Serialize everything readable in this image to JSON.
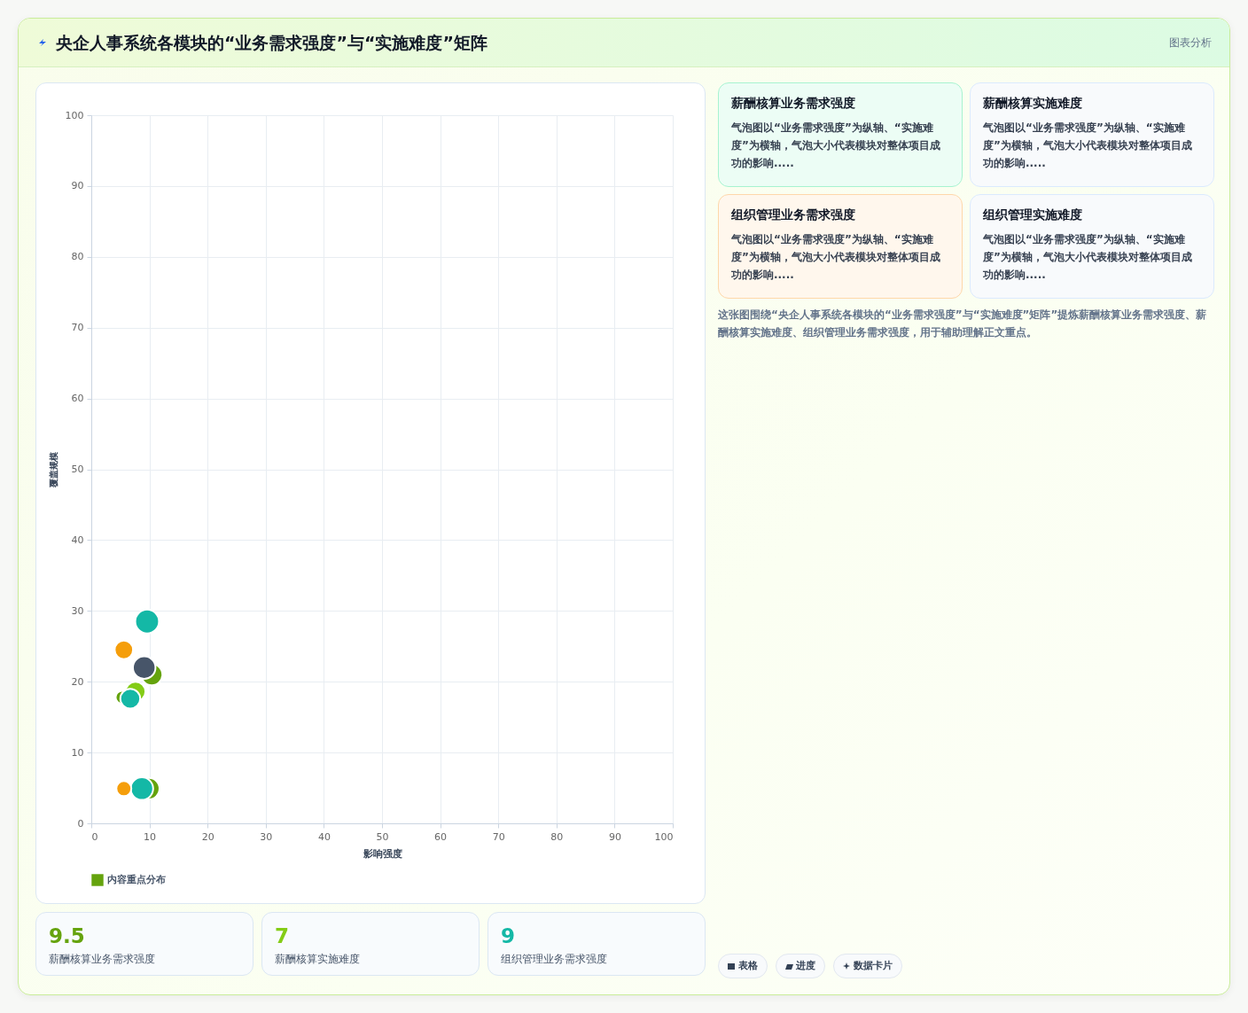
{
  "chart_data": [
    {
      "type": "bubble",
      "title": "央企人事系统各模块的“业务需求强度”与“实施难度”矩阵",
      "xlabel": "影响强度",
      "ylabel": "覆盖规模",
      "legend": "bottom",
      "grid": true,
      "xlim": [
        0,
        100
      ],
      "ylim": [
        0,
        100
      ],
      "xticks": [
        0,
        10,
        20,
        30,
        40,
        50,
        60,
        70,
        80,
        90,
        100
      ],
      "yticks": [
        0,
        10,
        20,
        30,
        40,
        50,
        60,
        70,
        80,
        90,
        100
      ],
      "annotations": [
        "图表分析"
      ],
      "series": [
        {
          "name": "内容重点分布",
          "color": "#65a30d",
          "x": [
            10.4,
            5.3,
            9.9,
            7.6,
            9.6,
            6.7,
            8.7,
            5.6,
            5.6,
            9.1
          ],
          "values": [
            21,
            17.8,
            4.9,
            18.6,
            28.5,
            17.6,
            4.9,
            24.5,
            4.9,
            22
          ],
          "sizes": [
            0.8,
            0.3,
            0.8,
            0.7,
            1,
            0.7,
            0.9,
            0.6,
            0.4,
            0.9
          ],
          "colors": [
            "#65a30d",
            "#65a30d",
            "#65a30d",
            "#84cc16",
            "#14b8a6",
            "#14b8a6",
            "#14b8a6",
            "#f59e0b",
            "#f59e0b",
            "#475569"
          ]
        }
      ]
    },
    {
      "type": "other",
      "annotations": [
        "薪酬核算业务需求强度",
        "气泡图以“业务需求强度”为纵轴、“实施难度”为横轴，气泡大小代表模块对整体项目成功的影响.....",
        "薪酬核算实施难度",
        "气泡图以“业务需求强度”为纵轴、“实施难度”为横轴，气泡大小代表模块对整体项目成功的影响.....",
        "组织管理业务需求强度",
        "气泡图以“业务需求强度”为纵轴、“实施难度”为横轴，气泡大小代表模块对整体项目成功的影响.....",
        "组织管理实施难度",
        "气泡图以“业务需求强度”为纵轴、“实施难度”为横轴，气泡大小代表模块对整体项目成功的影响.....",
        "这张图围绕“央企人事系统各模块的“业务需求强度”与“实施难度”矩阵”提炼薪酬核算业务需求强度、薪酬核算实施难度、组织管理业务需求强度，用于辅助理解正文重点。",
        "表格",
        "进度",
        "数据卡片"
      ]
    },
    {
      "type": "other",
      "annotations": [
        "9.5",
        "薪酬核算业务需求强度",
        "7",
        "薪酬核算实施难度",
        "9",
        "组织管理业务需求强度"
      ]
    }
  ]
}
